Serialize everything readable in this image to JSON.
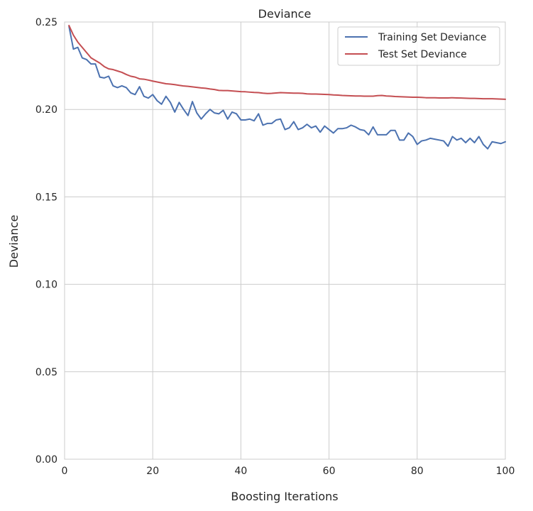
{
  "chart_data": {
    "type": "line",
    "title": "Deviance",
    "xlabel": "Boosting Iterations",
    "ylabel": "Deviance",
    "xlim": [
      0,
      100
    ],
    "ylim": [
      0,
      0.25
    ],
    "xticks": [
      0,
      20,
      40,
      60,
      80,
      100
    ],
    "xtick_labels": [
      "0",
      "20",
      "40",
      "60",
      "80",
      "100"
    ],
    "yticks": [
      0,
      0.05,
      0.1,
      0.15,
      0.2,
      0.25
    ],
    "ytick_labels": [
      "0.00",
      "0.05",
      "0.10",
      "0.15",
      "0.20",
      "0.25"
    ],
    "grid": true,
    "legend_position": "top-right",
    "x": [
      1,
      2,
      3,
      4,
      5,
      6,
      7,
      8,
      9,
      10,
      11,
      12,
      13,
      14,
      15,
      16,
      17,
      18,
      19,
      20,
      21,
      22,
      23,
      24,
      25,
      26,
      27,
      28,
      29,
      30,
      31,
      32,
      33,
      34,
      35,
      36,
      37,
      38,
      39,
      40,
      41,
      42,
      43,
      44,
      45,
      46,
      47,
      48,
      49,
      50,
      51,
      52,
      53,
      54,
      55,
      56,
      57,
      58,
      59,
      60,
      61,
      62,
      63,
      64,
      65,
      66,
      67,
      68,
      69,
      70,
      71,
      72,
      73,
      74,
      75,
      76,
      77,
      78,
      79,
      80,
      81,
      82,
      83,
      84,
      85,
      86,
      87,
      88,
      89,
      90,
      91,
      92,
      93,
      94,
      95,
      96,
      97,
      98,
      99,
      100
    ],
    "series": [
      {
        "name": "Training Set Deviance",
        "color": "#4c72b0",
        "values": [
          0.2475,
          0.2345,
          0.2355,
          0.2295,
          0.2285,
          0.226,
          0.226,
          0.2185,
          0.218,
          0.219,
          0.2135,
          0.2125,
          0.2135,
          0.2125,
          0.2095,
          0.2085,
          0.213,
          0.2075,
          0.2065,
          0.2085,
          0.205,
          0.203,
          0.2075,
          0.204,
          0.1985,
          0.204,
          0.2,
          0.1965,
          0.2045,
          0.198,
          0.1945,
          0.1975,
          0.2,
          0.198,
          0.1975,
          0.1995,
          0.1945,
          0.1985,
          0.1975,
          0.194,
          0.194,
          0.1945,
          0.1935,
          0.1975,
          0.191,
          0.192,
          0.192,
          0.194,
          0.1945,
          0.1885,
          0.1895,
          0.193,
          0.1885,
          0.1895,
          0.1915,
          0.1895,
          0.1905,
          0.187,
          0.1905,
          0.1885,
          0.1865,
          0.189,
          0.189,
          0.1895,
          0.191,
          0.19,
          0.1885,
          0.188,
          0.1855,
          0.19,
          0.1855,
          0.1855,
          0.1855,
          0.188,
          0.188,
          0.1825,
          0.1825,
          0.1865,
          0.1845,
          0.18,
          0.182,
          0.1825,
          0.1835,
          0.183,
          0.1825,
          0.182,
          0.179,
          0.1845,
          0.1825,
          0.1835,
          0.181,
          0.1835,
          0.181,
          0.1845,
          0.18,
          0.1775,
          0.1815,
          0.181,
          0.1805,
          0.1815
        ]
      },
      {
        "name": "Test Set Deviance",
        "color": "#c44e52",
        "values": [
          0.248,
          0.2425,
          0.2385,
          0.2355,
          0.2325,
          0.2295,
          0.228,
          0.2265,
          0.2245,
          0.2232,
          0.2228,
          0.222,
          0.2212,
          0.22,
          0.219,
          0.2185,
          0.2175,
          0.2173,
          0.2168,
          0.2162,
          0.2157,
          0.2152,
          0.2147,
          0.2145,
          0.2142,
          0.2138,
          0.2134,
          0.2132,
          0.2129,
          0.2126,
          0.2123,
          0.2121,
          0.2117,
          0.2114,
          0.2109,
          0.2108,
          0.2108,
          0.2106,
          0.2104,
          0.2102,
          0.2101,
          0.2099,
          0.2097,
          0.2096,
          0.2093,
          0.2091,
          0.2092,
          0.2094,
          0.2096,
          0.2095,
          0.2094,
          0.2093,
          0.2093,
          0.2092,
          0.2089,
          0.2088,
          0.2088,
          0.2087,
          0.2086,
          0.2085,
          0.2083,
          0.2082,
          0.208,
          0.2079,
          0.2078,
          0.2077,
          0.2077,
          0.2076,
          0.2076,
          0.2076,
          0.2079,
          0.208,
          0.2077,
          0.2076,
          0.2074,
          0.2073,
          0.2072,
          0.2071,
          0.207,
          0.207,
          0.2069,
          0.2067,
          0.2067,
          0.2067,
          0.2066,
          0.2066,
          0.2066,
          0.2067,
          0.2066,
          0.2065,
          0.2064,
          0.2063,
          0.2063,
          0.2062,
          0.2061,
          0.2061,
          0.2061,
          0.206,
          0.2059,
          0.2058
        ]
      }
    ]
  }
}
